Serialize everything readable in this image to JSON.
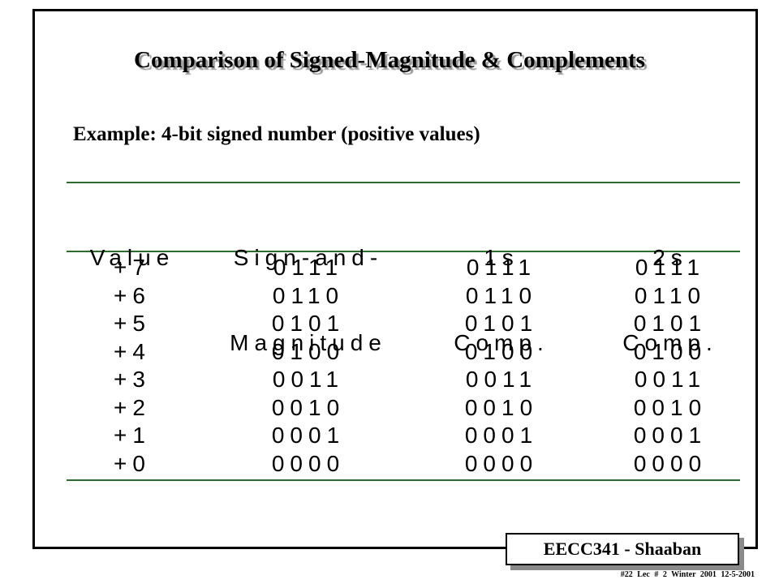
{
  "slide": {
    "title": "Comparison of Signed-Magnitude & Complements",
    "subtitle": "Example:  4-bit signed number (positive values)"
  },
  "table": {
    "headers": [
      {
        "line1": "Value",
        "line2": ""
      },
      {
        "line1": "Sign-and-",
        "line2": "Magnitude"
      },
      {
        "line1": "1s",
        "line2": "Comp."
      },
      {
        "line1": "2s",
        "line2": "Comp."
      }
    ],
    "rows": [
      [
        "+7",
        "0111",
        "0111",
        "0111"
      ],
      [
        "+6",
        "0110",
        "0110",
        "0110"
      ],
      [
        "+5",
        "0101",
        "0101",
        "0101"
      ],
      [
        "+4",
        "0100",
        "0100",
        "0100"
      ],
      [
        "+3",
        "0011",
        "0011",
        "0011"
      ],
      [
        "+2",
        "0010",
        "0010",
        "0010"
      ],
      [
        "+1",
        "0001",
        "0001",
        "0001"
      ],
      [
        "+0",
        "0000",
        "0000",
        "0000"
      ]
    ]
  },
  "badge": {
    "label": "EECC341  - Shaaban"
  },
  "footer": {
    "text": "#22   Lec # 2   Winter 2001  12-5-2001"
  },
  "colors": {
    "rule": "#2e6b2e",
    "shadow": "#8a8a8a"
  }
}
